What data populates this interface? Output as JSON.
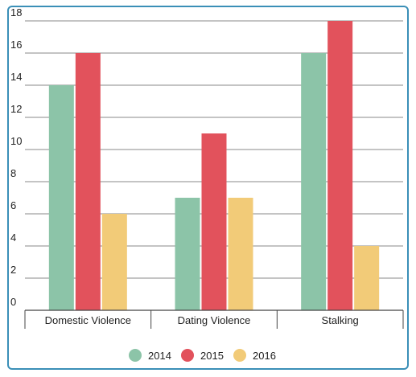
{
  "chart_data": {
    "type": "bar",
    "categories": [
      "Domestic Violence",
      "Dating Violence",
      "Stalking"
    ],
    "series": [
      {
        "name": "2014",
        "color": "#8cc4a8",
        "values": [
          14,
          7,
          16
        ]
      },
      {
        "name": "2015",
        "color": "#e2525c",
        "values": [
          16,
          11,
          18
        ]
      },
      {
        "name": "2016",
        "color": "#f2cb78",
        "values": [
          6,
          7,
          4
        ]
      }
    ],
    "yticks": [
      "0",
      "2",
      "4",
      "6",
      "8",
      "10",
      "12",
      "14",
      "16",
      "18"
    ],
    "ylim": [
      0,
      18
    ],
    "grid": true,
    "legend_position": "bottom-center"
  }
}
